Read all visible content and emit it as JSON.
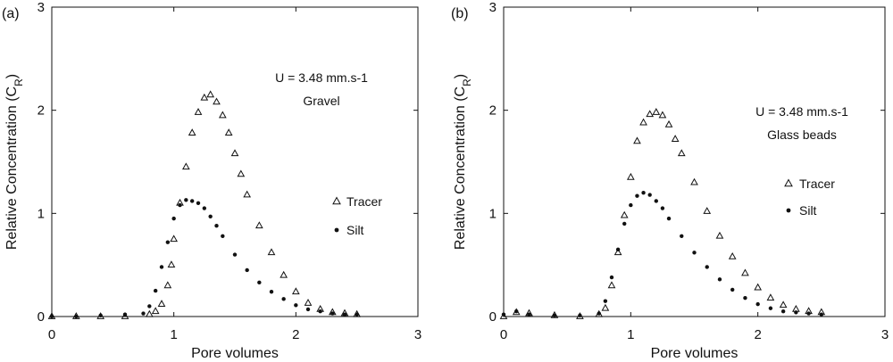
{
  "chart_data": [
    {
      "type": "scatter",
      "panel_label": "(a)",
      "xlabel": "Pore volumes",
      "ylabel": "Relative Concentration (C",
      "ylabel_sub": "R",
      "ylabel_close": ")",
      "xlim": [
        0,
        3
      ],
      "ylim": [
        0,
        3
      ],
      "xticks": [
        "0",
        "1",
        "2",
        "3"
      ],
      "yticks": [
        "0",
        "1",
        "2",
        "3"
      ],
      "annotation": [
        "U = 3.48 mm.s-1",
        "Gravel"
      ],
      "legend": [
        "Tracer",
        "Silt"
      ],
      "series": [
        {
          "name": "Tracer",
          "marker": "open-triangle",
          "x": [
            0.0,
            0.2,
            0.4,
            0.6,
            0.8,
            0.85,
            0.9,
            0.95,
            0.98,
            1.0,
            1.05,
            1.1,
            1.15,
            1.2,
            1.25,
            1.3,
            1.35,
            1.4,
            1.45,
            1.5,
            1.55,
            1.6,
            1.7,
            1.8,
            1.9,
            2.0,
            2.1,
            2.2,
            2.3,
            2.4,
            2.5
          ],
          "y": [
            0.0,
            0.0,
            0.0,
            0.0,
            0.02,
            0.05,
            0.12,
            0.3,
            0.5,
            0.75,
            1.1,
            1.45,
            1.78,
            1.98,
            2.12,
            2.15,
            2.08,
            1.95,
            1.78,
            1.58,
            1.38,
            1.18,
            0.88,
            0.62,
            0.4,
            0.24,
            0.13,
            0.07,
            0.04,
            0.03,
            0.02
          ]
        },
        {
          "name": "Silt",
          "marker": "filled-dot",
          "x": [
            0.0,
            0.2,
            0.4,
            0.6,
            0.75,
            0.8,
            0.85,
            0.9,
            0.95,
            1.0,
            1.05,
            1.1,
            1.15,
            1.2,
            1.25,
            1.3,
            1.35,
            1.4,
            1.5,
            1.6,
            1.7,
            1.8,
            1.9,
            2.0,
            2.1,
            2.2,
            2.3,
            2.4,
            2.5
          ],
          "y": [
            0.0,
            0.0,
            0.01,
            0.02,
            0.03,
            0.1,
            0.25,
            0.48,
            0.72,
            0.95,
            1.08,
            1.13,
            1.12,
            1.1,
            1.05,
            0.97,
            0.88,
            0.78,
            0.6,
            0.45,
            0.33,
            0.24,
            0.17,
            0.11,
            0.07,
            0.05,
            0.03,
            0.02,
            0.02
          ]
        }
      ]
    },
    {
      "type": "scatter",
      "panel_label": "(b)",
      "xlabel": "Pore volumes",
      "ylabel": "Relative Concentration (C",
      "ylabel_sub": "R",
      "ylabel_close": ")",
      "xlim": [
        0,
        3
      ],
      "ylim": [
        0,
        3
      ],
      "xticks": [
        "0",
        "1",
        "2",
        "3"
      ],
      "yticks": [
        "0",
        "1",
        "2",
        "3"
      ],
      "annotation": [
        "U = 3.48 mm.s-1",
        "Glass beads"
      ],
      "legend": [
        "Tracer",
        "Silt"
      ],
      "series": [
        {
          "name": "Tracer",
          "marker": "open-triangle",
          "x": [
            0.0,
            0.1,
            0.2,
            0.4,
            0.6,
            0.75,
            0.8,
            0.85,
            0.9,
            0.95,
            1.0,
            1.05,
            1.1,
            1.15,
            1.2,
            1.25,
            1.3,
            1.35,
            1.4,
            1.5,
            1.6,
            1.7,
            1.8,
            1.9,
            2.0,
            2.1,
            2.2,
            2.3,
            2.4,
            2.5
          ],
          "y": [
            0.0,
            0.04,
            0.03,
            0.01,
            0.0,
            0.02,
            0.08,
            0.3,
            0.62,
            0.98,
            1.35,
            1.7,
            1.88,
            1.96,
            1.98,
            1.95,
            1.86,
            1.72,
            1.58,
            1.3,
            1.02,
            0.78,
            0.58,
            0.42,
            0.28,
            0.18,
            0.11,
            0.07,
            0.05,
            0.04
          ]
        },
        {
          "name": "Silt",
          "marker": "filled-dot",
          "x": [
            0.0,
            0.1,
            0.2,
            0.4,
            0.6,
            0.75,
            0.8,
            0.85,
            0.9,
            0.95,
            1.0,
            1.05,
            1.1,
            1.15,
            1.2,
            1.25,
            1.3,
            1.4,
            1.5,
            1.6,
            1.7,
            1.8,
            1.9,
            2.0,
            2.1,
            2.2,
            2.3,
            2.4,
            2.5
          ],
          "y": [
            0.02,
            0.05,
            0.02,
            0.01,
            0.01,
            0.03,
            0.15,
            0.38,
            0.65,
            0.9,
            1.08,
            1.17,
            1.2,
            1.18,
            1.12,
            1.05,
            0.95,
            0.78,
            0.62,
            0.48,
            0.36,
            0.26,
            0.18,
            0.12,
            0.08,
            0.05,
            0.04,
            0.03,
            0.02
          ]
        }
      ]
    }
  ]
}
